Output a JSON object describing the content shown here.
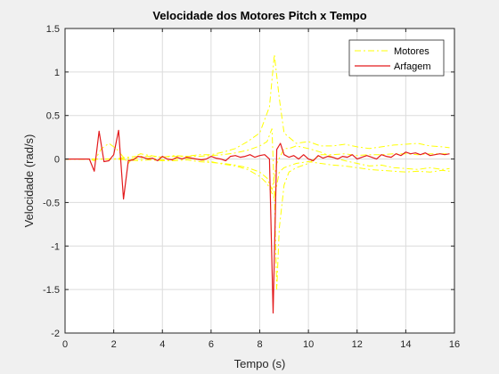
{
  "chart_data": {
    "type": "line",
    "title": "Velocidade dos Motores Pitch x Tempo",
    "xlabel": "Tempo (s)",
    "ylabel": "Velocidade (rad/s)",
    "xlim": [
      0,
      16
    ],
    "ylim": [
      -2,
      1.5
    ],
    "xticks": [
      0,
      2,
      4,
      6,
      8,
      10,
      12,
      14,
      16
    ],
    "yticks": [
      -2,
      -1.5,
      -1,
      -0.5,
      0,
      0.5,
      1,
      1.5
    ],
    "grid": true,
    "legend_position": "top-right",
    "series": [
      {
        "name": "Motores",
        "color": "#ffff00",
        "style": "dash-dot",
        "lines": [
          {
            "x": [
              0,
              1.0,
              1.2,
              1.5,
              1.8,
              2.1,
              2.4,
              2.6,
              2.8,
              3.1,
              3.5,
              4,
              4.5,
              5,
              5.5,
              6,
              6.5,
              7,
              7.5,
              8.0,
              8.4,
              8.6,
              8.8,
              9.0,
              9.2,
              9.5,
              10,
              10.5,
              11,
              11.5,
              12,
              12.5,
              13,
              13.5,
              14,
              14.5,
              15,
              15.5,
              15.8
            ],
            "y": [
              0,
              0,
              -0.02,
              0.12,
              0.18,
              0.12,
              0.02,
              -0.05,
              0.02,
              0.06,
              0.04,
              0.02,
              0.04,
              0.03,
              0.05,
              0.05,
              0.08,
              0.12,
              0.2,
              0.3,
              0.6,
              1.2,
              0.7,
              0.3,
              0.25,
              0.18,
              0.2,
              0.15,
              0.15,
              0.17,
              0.14,
              0.12,
              0.14,
              0.16,
              0.17,
              0.18,
              0.15,
              0.14,
              0.13
            ]
          },
          {
            "x": [
              0,
              2.0,
              2.5,
              3,
              3.5,
              4,
              4.5,
              5,
              5.5,
              6,
              6.5,
              7,
              7.5,
              8.0,
              8.3,
              8.5,
              8.6,
              8.7,
              8.8,
              9.0,
              9.2,
              9.5,
              10,
              10.5,
              11,
              11.5,
              12,
              12.5,
              13,
              13.5,
              14,
              14.5,
              15,
              15.5,
              15.8
            ],
            "y": [
              0,
              0,
              0.02,
              0.03,
              0.03,
              0.02,
              0.03,
              0.03,
              0.03,
              0.04,
              0.05,
              0.07,
              0.1,
              0.15,
              0.2,
              0.35,
              -0.4,
              -1.5,
              -0.8,
              -0.3,
              -0.15,
              -0.1,
              -0.05,
              0.05,
              0.05,
              0.06,
              0.04,
              0.05,
              0.05,
              0.06,
              0.06,
              0.05,
              0.06,
              0.06,
              0.06
            ]
          },
          {
            "x": [
              0,
              2.0,
              2.5,
              3,
              3.5,
              4,
              4.5,
              5,
              5.5,
              6,
              6.5,
              7,
              7.5,
              8.0,
              8.3,
              8.5,
              8.7,
              9.0,
              9.2,
              9.5,
              10,
              10.5,
              11,
              11.5,
              12,
              12.5,
              13,
              13.5,
              14,
              14.5,
              15,
              15.5,
              15.8
            ],
            "y": [
              0,
              0,
              -0.01,
              -0.02,
              -0.01,
              -0.02,
              -0.02,
              -0.01,
              -0.03,
              -0.04,
              -0.05,
              -0.07,
              -0.1,
              -0.15,
              -0.22,
              -0.35,
              -0.05,
              0.12,
              0.12,
              0.15,
              0.12,
              0.08,
              0.02,
              -0.02,
              -0.05,
              -0.08,
              -0.07,
              -0.1,
              -0.11,
              -0.12,
              -0.1,
              -0.12,
              -0.11
            ]
          },
          {
            "x": [
              0,
              2.0,
              2.5,
              3,
              3.5,
              4,
              4.5,
              5,
              5.5,
              6,
              6.5,
              7,
              7.5,
              8.0,
              8.3,
              8.6,
              8.8,
              9.0,
              9.2,
              9.5,
              10,
              10.5,
              11,
              11.5,
              12,
              12.5,
              13,
              13.5,
              14,
              14.5,
              15,
              15.5,
              15.8
            ],
            "y": [
              0,
              0,
              0.01,
              0,
              0.01,
              -0.01,
              0,
              0.01,
              -0.01,
              -0.03,
              -0.06,
              -0.08,
              -0.12,
              -0.2,
              -0.28,
              -0.45,
              -0.15,
              -0.1,
              -0.08,
              -0.05,
              -0.03,
              -0.05,
              -0.07,
              -0.08,
              -0.1,
              -0.12,
              -0.13,
              -0.14,
              -0.15,
              -0.14,
              -0.15,
              -0.13,
              -0.14
            ]
          }
        ]
      },
      {
        "name": "Arfagem",
        "color": "#e31a1c",
        "style": "solid",
        "x": [
          0,
          1.0,
          1.2,
          1.4,
          1.6,
          1.8,
          2.0,
          2.2,
          2.4,
          2.6,
          2.8,
          3.0,
          3.2,
          3.4,
          3.6,
          3.8,
          4.0,
          4.2,
          4.4,
          4.6,
          4.8,
          5.0,
          5.2,
          5.4,
          5.6,
          5.8,
          6.0,
          6.2,
          6.4,
          6.6,
          6.8,
          7.0,
          7.2,
          7.4,
          7.6,
          7.8,
          8.0,
          8.2,
          8.4,
          8.55,
          8.7,
          8.85,
          9.0,
          9.2,
          9.4,
          9.6,
          9.8,
          10.0,
          10.2,
          10.4,
          10.6,
          10.8,
          11.0,
          11.2,
          11.4,
          11.6,
          11.8,
          12.0,
          12.2,
          12.4,
          12.6,
          12.8,
          13.0,
          13.2,
          13.4,
          13.6,
          13.8,
          14.0,
          14.2,
          14.4,
          14.6,
          14.8,
          15.0,
          15.2,
          15.4,
          15.6,
          15.8
        ],
        "y": [
          0,
          0,
          -0.14,
          0.32,
          -0.03,
          -0.02,
          0.05,
          0.33,
          -0.46,
          -0.02,
          -0.01,
          0.03,
          0.02,
          0.0,
          0.01,
          -0.02,
          0.03,
          0.0,
          -0.01,
          0.02,
          0.0,
          0.02,
          0.01,
          0.0,
          -0.01,
          0.0,
          0.03,
          0.01,
          0.0,
          -0.02,
          0.03,
          0.04,
          0.02,
          0.03,
          0.05,
          0.02,
          0.04,
          0.05,
          0.0,
          -1.77,
          0.11,
          0.18,
          0.05,
          0.02,
          0.04,
          0.0,
          0.05,
          0.0,
          -0.02,
          0.04,
          0.01,
          0.03,
          0.02,
          0.0,
          0.03,
          0.02,
          0.05,
          0.0,
          0.02,
          0.04,
          0.02,
          0.0,
          0.05,
          0.03,
          0.02,
          0.06,
          0.04,
          0.08,
          0.06,
          0.07,
          0.05,
          0.07,
          0.04,
          0.05,
          0.06,
          0.05,
          0.06
        ]
      }
    ]
  }
}
